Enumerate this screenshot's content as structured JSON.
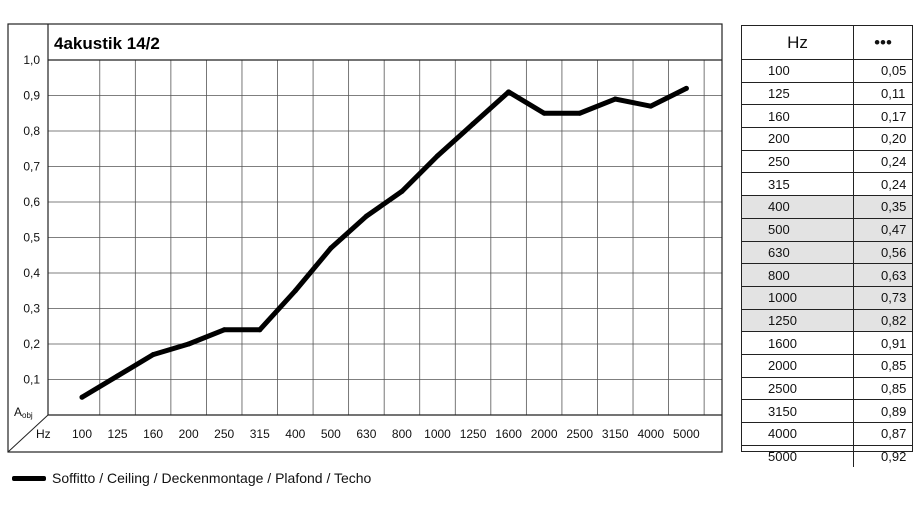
{
  "chart_data": {
    "type": "line",
    "title": "4akustik 14/2",
    "ylabel_main": "A",
    "ylabel_sub": "obj",
    "xlabel": "Hz",
    "ylim": [
      0,
      1.0
    ],
    "yticks": [
      "0,1",
      "0,2",
      "0,3",
      "0,4",
      "0,5",
      "0,6",
      "0,7",
      "0,8",
      "0,9",
      "1,0"
    ],
    "categories": [
      "100",
      "125",
      "160",
      "200",
      "250",
      "315",
      "400",
      "500",
      "630",
      "800",
      "1000",
      "1250",
      "1600",
      "2000",
      "2500",
      "3150",
      "4000",
      "5000"
    ],
    "series": [
      {
        "name": "Soffitto / Ceiling / Deckenmontage / Plafond / Techo",
        "values": [
          0.05,
          0.11,
          0.17,
          0.2,
          0.24,
          0.24,
          0.35,
          0.47,
          0.56,
          0.63,
          0.73,
          0.82,
          0.91,
          0.85,
          0.85,
          0.89,
          0.87,
          0.92
        ],
        "color": "#000000"
      }
    ],
    "grid": true,
    "legend": "bottom-left"
  },
  "table": {
    "header_hz": "Hz",
    "header_value": "•••",
    "rows": [
      {
        "hz": "100",
        "value": "0,05",
        "shaded": false
      },
      {
        "hz": "125",
        "value": "0,11",
        "shaded": false
      },
      {
        "hz": "160",
        "value": "0,17",
        "shaded": false
      },
      {
        "hz": "200",
        "value": "0,20",
        "shaded": false
      },
      {
        "hz": "250",
        "value": "0,24",
        "shaded": false
      },
      {
        "hz": "315",
        "value": "0,24",
        "shaded": false
      },
      {
        "hz": "400",
        "value": "0,35",
        "shaded": true
      },
      {
        "hz": "500",
        "value": "0,47",
        "shaded": true
      },
      {
        "hz": "630",
        "value": "0,56",
        "shaded": true
      },
      {
        "hz": "800",
        "value": "0,63",
        "shaded": true
      },
      {
        "hz": "1000",
        "value": "0,73",
        "shaded": true
      },
      {
        "hz": "1250",
        "value": "0,82",
        "shaded": true
      },
      {
        "hz": "1600",
        "value": "0,91",
        "shaded": false
      },
      {
        "hz": "2000",
        "value": "0,85",
        "shaded": false
      },
      {
        "hz": "2500",
        "value": "0,85",
        "shaded": false
      },
      {
        "hz": "3150",
        "value": "0,89",
        "shaded": false
      },
      {
        "hz": "4000",
        "value": "0,87",
        "shaded": false
      },
      {
        "hz": "5000",
        "value": "0,92",
        "shaded": false
      }
    ],
    "shade_color": "#e3e3e3"
  }
}
